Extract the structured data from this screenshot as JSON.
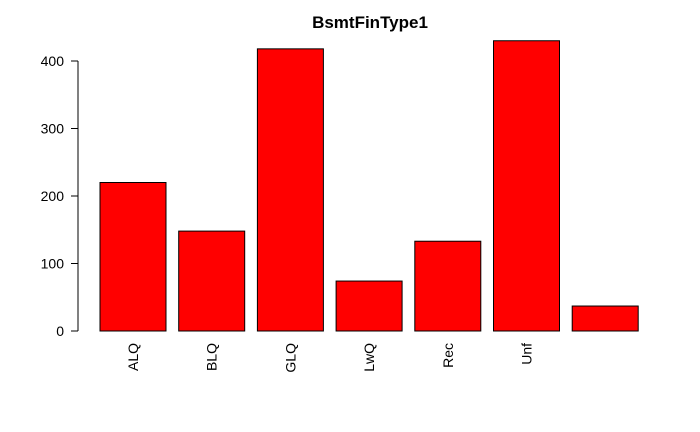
{
  "chart_data": {
    "type": "bar",
    "title": "BsmtFinType1",
    "categories": [
      "ALQ",
      "BLQ",
      "GLQ",
      "LwQ",
      "Rec",
      "Unf",
      ""
    ],
    "values": [
      220,
      148,
      418,
      74,
      133,
      430,
      37
    ],
    "xlabel": "",
    "ylabel": "",
    "ylim": [
      0,
      430
    ],
    "yticks": [
      0,
      100,
      200,
      300,
      400
    ],
    "bar_color": "#ff0000",
    "grid": false,
    "legend": "none"
  }
}
